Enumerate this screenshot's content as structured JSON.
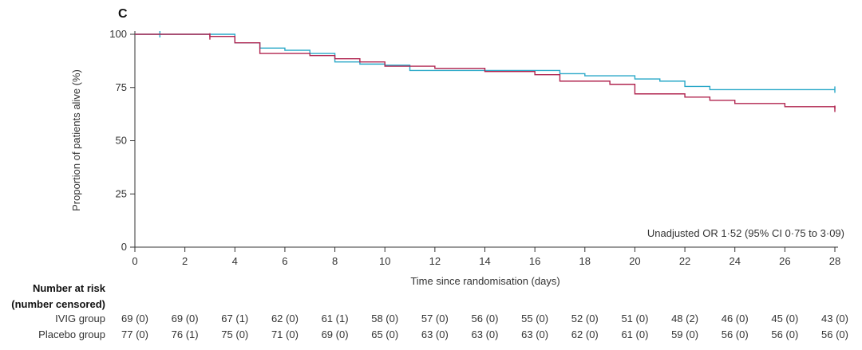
{
  "chart_data": {
    "type": "line",
    "panel_label": "C",
    "ylabel": "Proportion of patients alive (%)",
    "xlabel": "Time since randomisation (days)",
    "xlim": [
      0,
      28
    ],
    "ylim": [
      0,
      100
    ],
    "x_ticks": [
      0,
      2,
      4,
      6,
      8,
      10,
      12,
      14,
      16,
      18,
      20,
      22,
      24,
      26,
      28
    ],
    "y_ticks": [
      0,
      25,
      50,
      75,
      100
    ],
    "grid": false,
    "annotation": "Unadjusted OR 1·52 (95% CI 0·75 to 3·09)",
    "series": [
      {
        "color": "#29a8c8",
        "steps": [
          [
            0,
            100
          ],
          [
            4,
            96
          ],
          [
            5,
            93.5
          ],
          [
            6,
            92.5
          ],
          [
            7,
            91
          ],
          [
            8,
            87
          ],
          [
            9,
            86
          ],
          [
            10,
            85.5
          ],
          [
            11,
            83
          ],
          [
            17,
            81.5
          ],
          [
            18,
            80.5
          ],
          [
            20,
            79
          ],
          [
            21,
            78
          ],
          [
            22,
            75.5
          ],
          [
            23,
            74
          ],
          [
            28,
            74
          ]
        ],
        "censor_x": [
          1,
          28
        ]
      },
      {
        "color": "#b0244f",
        "steps": [
          [
            0,
            100
          ],
          [
            3,
            99
          ],
          [
            4,
            96
          ],
          [
            5,
            91
          ],
          [
            7,
            90
          ],
          [
            8,
            88.5
          ],
          [
            9,
            87
          ],
          [
            10,
            85
          ],
          [
            12,
            84
          ],
          [
            14,
            82.5
          ],
          [
            16,
            81
          ],
          [
            17,
            78
          ],
          [
            19,
            76.5
          ],
          [
            20,
            72
          ],
          [
            22,
            70.5
          ],
          [
            23,
            69
          ],
          [
            24,
            67.5
          ],
          [
            26,
            66
          ],
          [
            28,
            65
          ]
        ],
        "censor_x": [
          3,
          28
        ]
      }
    ]
  },
  "risk_table": {
    "header_line1": "Number at risk",
    "header_line2": "(number censored)",
    "rows": [
      {
        "label": "IVIG group",
        "values": [
          "69 (0)",
          "69 (0)",
          "67 (1)",
          "62 (0)",
          "61 (1)",
          "58 (0)",
          "57 (0)",
          "56 (0)",
          "55 (0)",
          "52 (0)",
          "51 (0)",
          "48 (2)",
          "46 (0)",
          "45 (0)",
          "43 (0)"
        ]
      },
      {
        "label": "Placebo group",
        "values": [
          "77 (0)",
          "76 (1)",
          "75 (0)",
          "71 (0)",
          "69 (0)",
          "65 (0)",
          "63 (0)",
          "63 (0)",
          "63 (0)",
          "62 (0)",
          "61 (0)",
          "59 (0)",
          "56 (0)",
          "56 (0)",
          "56 (0)"
        ]
      }
    ]
  }
}
